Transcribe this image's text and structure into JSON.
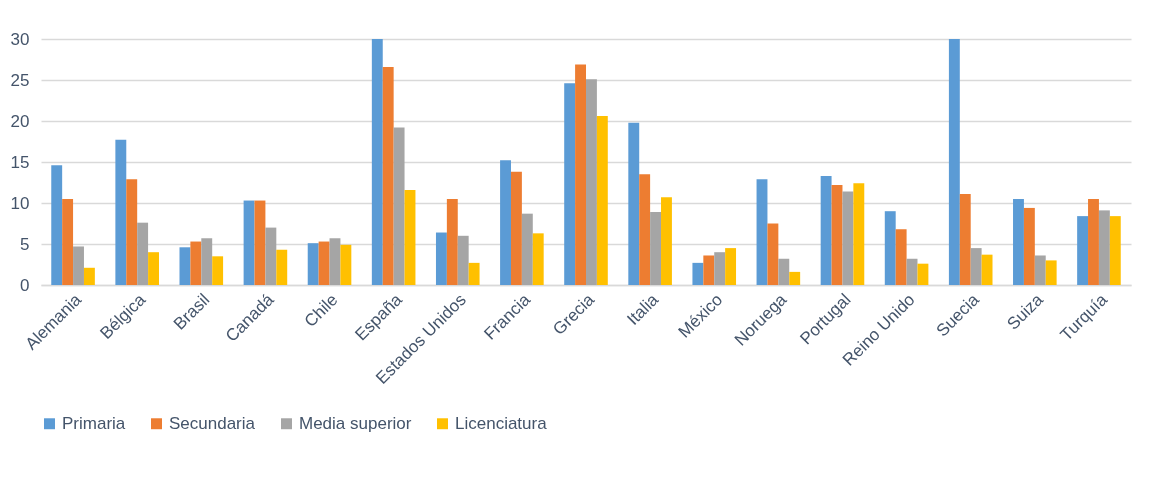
{
  "chart_data": {
    "type": "bar",
    "categories": [
      "Alemania",
      "Bélgica",
      "Brasil",
      "Canadá",
      "Chile",
      "España",
      "Estados Unidos",
      "Francia",
      "Grecia",
      "Italia",
      "México",
      "Noruega",
      "Portugal",
      "Reino Unido",
      "Suecia",
      "Suiza",
      "Turquía"
    ],
    "series": [
      {
        "name": "Primaria",
        "color": "#5b9bd5",
        "values": [
          14.6,
          17.7,
          4.6,
          10.3,
          5.1,
          30,
          6.4,
          15.2,
          24.6,
          19.8,
          2.7,
          12.9,
          13.3,
          9.0,
          30,
          10.5,
          8.4
        ]
      },
      {
        "name": "Secundaria",
        "color": "#ed7d31",
        "values": [
          10.5,
          12.9,
          5.3,
          10.3,
          5.3,
          26.6,
          10.5,
          13.8,
          26.9,
          13.5,
          3.6,
          7.5,
          12.2,
          6.8,
          11.1,
          9.4,
          10.5
        ]
      },
      {
        "name": "Media superior",
        "color": "#a5a5a5",
        "values": [
          4.7,
          7.6,
          5.7,
          7.0,
          5.7,
          19.2,
          6.0,
          8.7,
          25.1,
          8.9,
          4.0,
          3.2,
          11.4,
          3.2,
          4.5,
          3.6,
          9.1
        ]
      },
      {
        "name": "Licenciatura",
        "color": "#ffc000",
        "values": [
          2.1,
          4.0,
          3.5,
          4.3,
          4.9,
          11.6,
          2.7,
          6.3,
          20.6,
          10.7,
          4.5,
          1.6,
          12.4,
          2.6,
          3.7,
          3.0,
          8.4
        ]
      }
    ],
    "ylim": [
      0,
      30
    ],
    "yticks": [
      0,
      5,
      10,
      15,
      20,
      25,
      30
    ],
    "grid": "y",
    "legend": "bottom"
  }
}
